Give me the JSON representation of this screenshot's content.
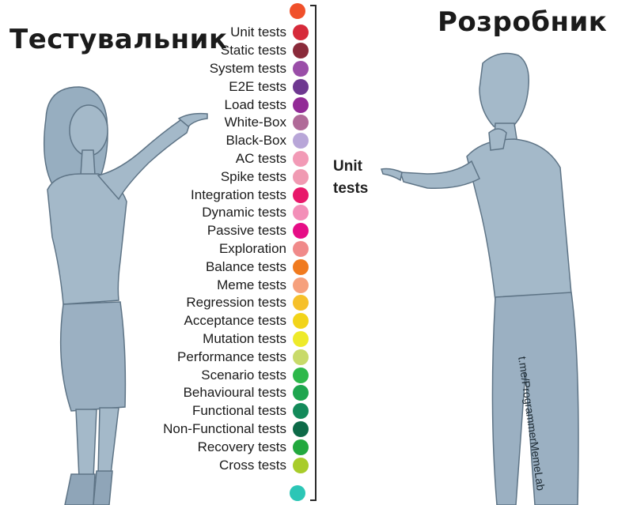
{
  "titles": {
    "tester": "Тестувальник",
    "developer": "Розробник"
  },
  "speech": {
    "line1": "Unit",
    "line2": "tests"
  },
  "watermark": "t.me/ProgrammerMemeLab",
  "test_types": [
    {
      "label": "Unit tests",
      "color": "#d62a3a"
    },
    {
      "label": "Static tests",
      "color": "#8a2a3a"
    },
    {
      "label": "System tests",
      "color": "#9a4ea8"
    },
    {
      "label": "E2E tests",
      "color": "#6e3890"
    },
    {
      "label": "Load tests",
      "color": "#922a96"
    },
    {
      "label": "White-Box",
      "color": "#b06a98"
    },
    {
      "label": "Black-Box",
      "color": "#b8a6d8"
    },
    {
      "label": "AC tests",
      "color": "#f29ab6"
    },
    {
      "label": "Spike tests",
      "color": "#f09ab2"
    },
    {
      "label": "Integration tests",
      "color": "#e8186a"
    },
    {
      "label": "Dynamic tests",
      "color": "#f38fb8"
    },
    {
      "label": "Passive tests",
      "color": "#e60d86"
    },
    {
      "label": "Exploration",
      "color": "#f08a8a"
    },
    {
      "label": "Balance tests",
      "color": "#f07a1e"
    },
    {
      "label": "Meme tests",
      "color": "#f6a07c"
    },
    {
      "label": "Regression tests",
      "color": "#f6c02a"
    },
    {
      "label": "Acceptance tests",
      "color": "#f2d41a"
    },
    {
      "label": "Mutation tests",
      "color": "#eeea2a"
    },
    {
      "label": "Performance tests",
      "color": "#c8da6a"
    },
    {
      "label": "Scenario tests",
      "color": "#2db84a"
    },
    {
      "label": "Behavioural tests",
      "color": "#1ea54e"
    },
    {
      "label": "Functional tests",
      "color": "#138a5a"
    },
    {
      "label": "Non-Functional tests",
      "color": "#0d6a48"
    },
    {
      "label": "Recovery tests",
      "color": "#22a83e"
    },
    {
      "label": "Cross tests",
      "color": "#a8cc2a"
    }
  ],
  "extra_dots": {
    "top_color": "#f0502a",
    "bottom_color": "#2cc6b6"
  },
  "figure_color": "#a4b9c9"
}
